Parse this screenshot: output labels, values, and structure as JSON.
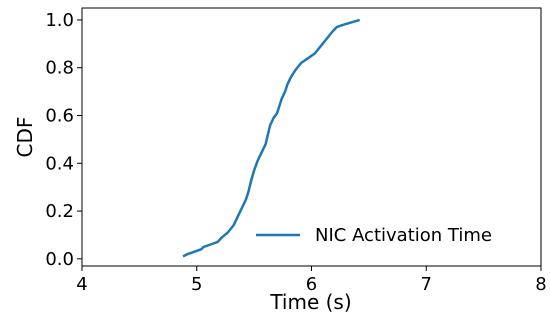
{
  "chart_data": {
    "type": "line",
    "title": "",
    "xlabel": "Time (s)",
    "ylabel": "CDF",
    "xlim": [
      4,
      8
    ],
    "ylim": [
      -0.03,
      1.05
    ],
    "xticks": [
      4,
      5,
      6,
      7,
      8
    ],
    "xtick_labels": [
      "4",
      "5",
      "6",
      "7",
      "8"
    ],
    "yticks": [
      0.0,
      0.2,
      0.4,
      0.6,
      0.8,
      1.0
    ],
    "ytick_labels": [
      "0.0",
      "0.2",
      "0.4",
      "0.6",
      "0.8",
      "1.0"
    ],
    "grid": false,
    "legend_position": "lower-right",
    "series": [
      {
        "name": "NIC Activation Time",
        "color": "#1f77b4",
        "x": [
          4.88,
          4.92,
          4.98,
          5.04,
          5.06,
          5.12,
          5.18,
          5.22,
          5.27,
          5.32,
          5.36,
          5.4,
          5.43,
          5.45,
          5.47,
          5.5,
          5.53,
          5.56,
          5.6,
          5.62,
          5.64,
          5.67,
          5.7,
          5.72,
          5.74,
          5.77,
          5.79,
          5.82,
          5.86,
          5.91,
          5.97,
          6.03,
          6.08,
          6.13,
          6.18,
          6.22,
          6.28,
          6.35,
          6.42
        ],
        "y": [
          0.01,
          0.02,
          0.03,
          0.04,
          0.05,
          0.06,
          0.07,
          0.09,
          0.11,
          0.14,
          0.18,
          0.22,
          0.25,
          0.28,
          0.32,
          0.37,
          0.41,
          0.44,
          0.48,
          0.52,
          0.56,
          0.59,
          0.61,
          0.64,
          0.67,
          0.7,
          0.73,
          0.76,
          0.79,
          0.82,
          0.84,
          0.86,
          0.89,
          0.92,
          0.95,
          0.97,
          0.98,
          0.99,
          1.0
        ]
      }
    ]
  }
}
